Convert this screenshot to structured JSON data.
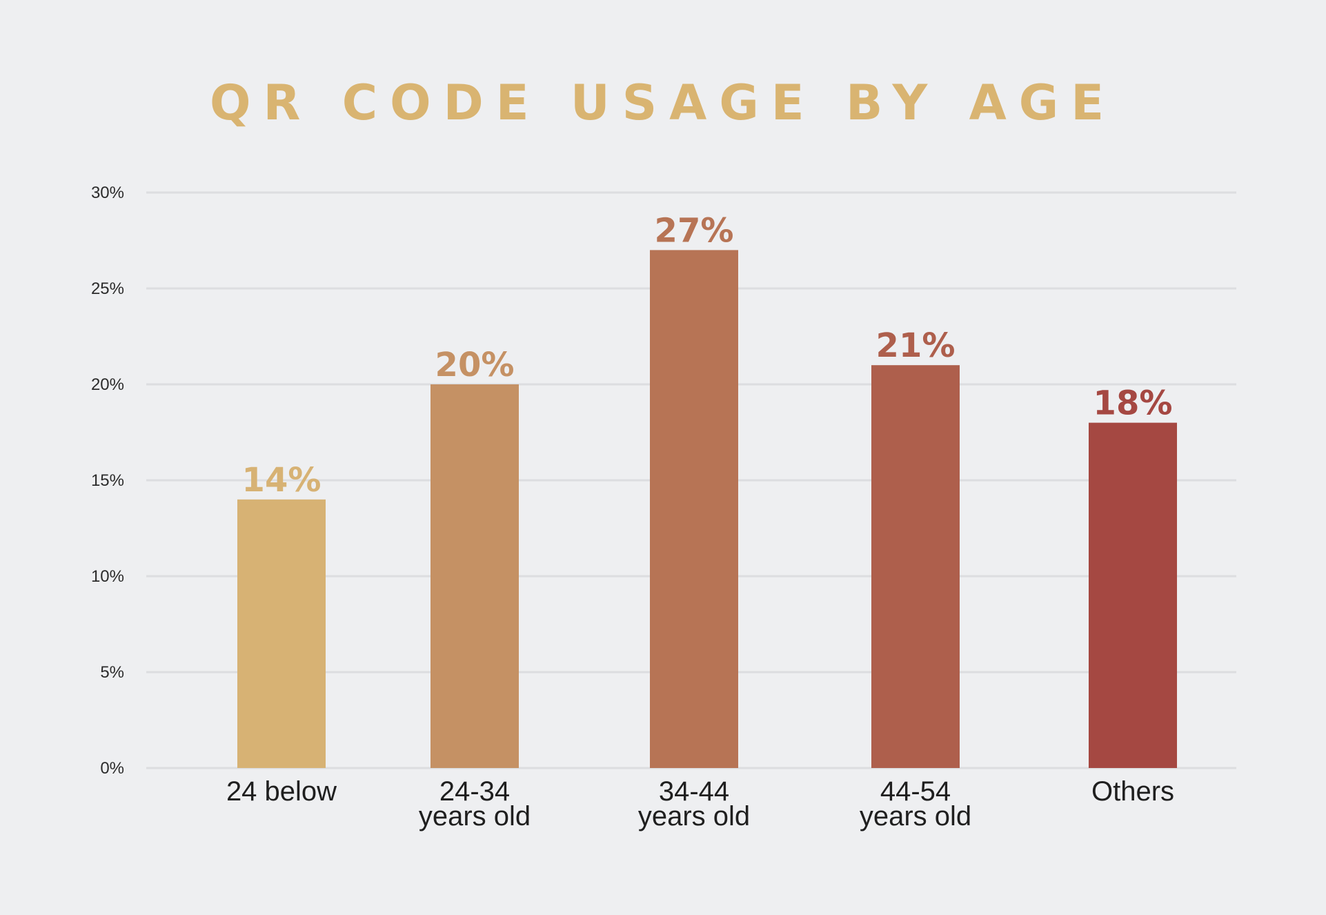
{
  "chart_data": {
    "type": "bar",
    "title": "QR CODE USAGE BY AGE",
    "categories": [
      [
        "24 below"
      ],
      [
        "24-34",
        "years old"
      ],
      [
        "34-44",
        "years old"
      ],
      [
        "44-54",
        "years old"
      ],
      [
        "Others"
      ]
    ],
    "values": [
      14,
      20,
      27,
      21,
      18
    ],
    "data_labels": [
      "14%",
      "20%",
      "27%",
      "21%",
      "18%"
    ],
    "ylim": [
      0,
      30
    ],
    "yticks": [
      0,
      5,
      10,
      15,
      20,
      25,
      30
    ],
    "ytick_labels": [
      "0%",
      "5%",
      "10%",
      "15%",
      "20%",
      "25%",
      "30%"
    ],
    "grid": true,
    "legend": "none",
    "colors": [
      "#d7b274",
      "#c59164",
      "#b77455",
      "#ae5f4c",
      "#a54842"
    ],
    "title_color": "#d9b471",
    "grid_color": "#dcdde0"
  }
}
